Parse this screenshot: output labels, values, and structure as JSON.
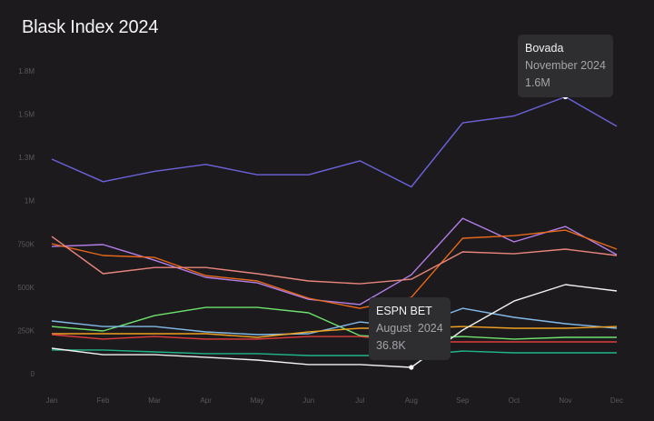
{
  "chart_data": {
    "type": "line",
    "title": "Blask Index 2024",
    "categories": [
      "Jan",
      "Feb",
      "Mar",
      "Apr",
      "May",
      "Jun",
      "Jul",
      "Aug",
      "Sep",
      "Oct",
      "Nov",
      "Dec"
    ],
    "y_ticks": [
      {
        "value": 0,
        "label": "0"
      },
      {
        "value": 250000,
        "label": "250K"
      },
      {
        "value": 500000,
        "label": "500K"
      },
      {
        "value": 750000,
        "label": "750K"
      },
      {
        "value": 1000000,
        "label": "1M"
      },
      {
        "value": 1250000,
        "label": "1.3M"
      },
      {
        "value": 1500000,
        "label": "1.5M"
      },
      {
        "value": 1750000,
        "label": "1.8M"
      }
    ],
    "ylim": [
      0,
      1750000
    ],
    "grid": false,
    "background": "#1c1a1d",
    "series": [
      {
        "name": "Bovada",
        "color": "#6b63db",
        "values": [
          1240000,
          1110000,
          1170000,
          1210000,
          1150000,
          1150000,
          1230000,
          1080000,
          1450000,
          1490000,
          1600000,
          1430000
        ]
      },
      {
        "color": "#b47ee8",
        "values": [
          735000,
          746000,
          656000,
          557000,
          525000,
          430000,
          400000,
          572000,
          898000,
          762000,
          851000,
          688000
        ]
      },
      {
        "color": "#e8691a",
        "values": [
          751000,
          683000,
          672000,
          567000,
          536000,
          436000,
          378000,
          441000,
          783000,
          798000,
          830000,
          720000
        ]
      },
      {
        "color": "#e8857c",
        "values": [
          793000,
          578000,
          614000,
          614000,
          578000,
          536000,
          520000,
          546000,
          704000,
          693000,
          720000,
          683000
        ]
      },
      {
        "color": "#6de36d",
        "values": [
          273000,
          247000,
          336000,
          383000,
          383000,
          352000,
          220000,
          205000,
          215000,
          200000,
          210000,
          210000
        ]
      },
      {
        "color": "#82bbea",
        "values": [
          305000,
          273000,
          273000,
          242000,
          226000,
          231000,
          299000,
          268000,
          378000,
          326000,
          289000,
          263000
        ]
      },
      {
        "color": "#f0a020",
        "values": [
          231000,
          231000,
          231000,
          231000,
          210000,
          242000,
          263000,
          263000,
          273000,
          263000,
          263000,
          273000
        ]
      },
      {
        "color": "#e03c3c",
        "values": [
          226000,
          200000,
          215000,
          200000,
          200000,
          215000,
          215000,
          184000,
          184000,
          184000,
          184000,
          184000
        ]
      },
      {
        "color": "#1fb58a",
        "values": [
          137000,
          137000,
          126000,
          116000,
          116000,
          105000,
          105000,
          105000,
          131000,
          121000,
          121000,
          121000
        ]
      },
      {
        "name": "ESPN BET",
        "color": "#f2f2f2",
        "values": [
          147000,
          110000,
          110000,
          95000,
          79000,
          53000,
          53000,
          36800,
          252000,
          420000,
          515000,
          478000
        ]
      }
    ],
    "tooltips": [
      {
        "series": "Bovada",
        "date": "November 2024",
        "value": "1.6M",
        "index": 10
      },
      {
        "series": "ESPN BET",
        "date": "August  2024",
        "value": "36.8K",
        "index": 7
      }
    ]
  }
}
